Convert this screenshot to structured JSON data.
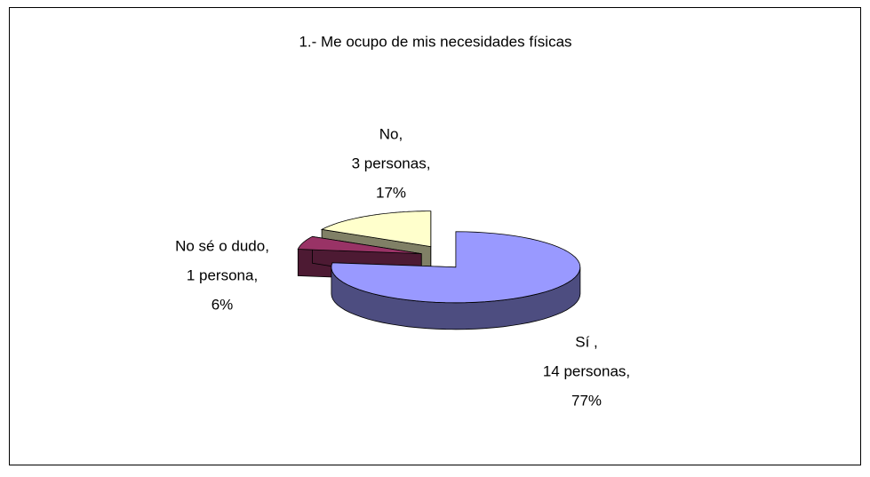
{
  "chart_data": {
    "type": "pie3d",
    "title": "1.- Me ocupo de mis necesidades físicas",
    "categories": [
      "Sí ,",
      "No sé o dudo,",
      "No,"
    ],
    "count_labels": [
      "14 personas,",
      "1 persona,",
      "3 personas,"
    ],
    "values": [
      77,
      6,
      17
    ],
    "value_labels": [
      "77%",
      "6%",
      "17%"
    ],
    "colors": [
      "#9999ff",
      "#993366",
      "#ffffcc"
    ]
  }
}
